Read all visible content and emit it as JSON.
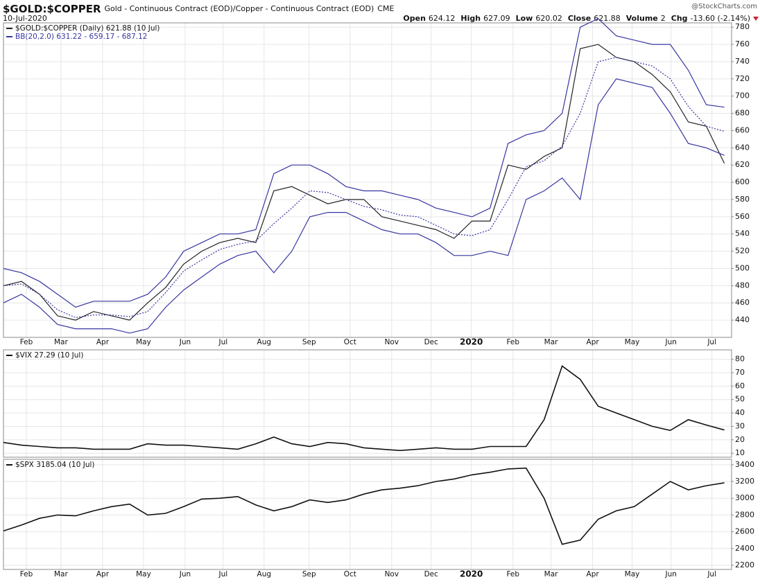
{
  "header": {
    "symbol": "$GOLD:$COPPER",
    "description": "Gold - Continuous Contract (EOD)/Copper - Continuous Contract (EOD)",
    "exchange": "CME",
    "date": "10-Jul-2020",
    "watermark": "@StockCharts.com",
    "quote": [
      {
        "label": "Open",
        "value": "624.12"
      },
      {
        "label": "High",
        "value": "627.09"
      },
      {
        "label": "Low",
        "value": "620.02"
      },
      {
        "label": "Close",
        "value": "621.88"
      },
      {
        "label": "Volume",
        "value": "2"
      },
      {
        "label": "Chg",
        "value": "-13.60 (-2.14%)"
      }
    ]
  },
  "x_axis": {
    "xlim": [
      0,
      40.4
    ],
    "xticks": [
      {
        "value": 1.27,
        "label": "Feb"
      },
      {
        "value": 3.19,
        "label": "Mar"
      },
      {
        "value": 5.5,
        "label": "Apr"
      },
      {
        "value": 7.77,
        "label": "May"
      },
      {
        "value": 10.08,
        "label": "Jun"
      },
      {
        "value": 12.19,
        "label": "Jul"
      },
      {
        "value": 14.46,
        "label": "Aug"
      },
      {
        "value": 16.96,
        "label": "Sep"
      },
      {
        "value": 19.23,
        "label": "Oct"
      },
      {
        "value": 21.54,
        "label": "Nov"
      },
      {
        "value": 23.73,
        "label": "Dec"
      },
      {
        "value": 25.96,
        "label": "2020"
      },
      {
        "value": 28.27,
        "label": "Feb"
      },
      {
        "value": 30.38,
        "label": "Mar"
      },
      {
        "value": 32.69,
        "label": "Apr"
      },
      {
        "value": 34.88,
        "label": "May"
      },
      {
        "value": 37.04,
        "label": "Jun"
      },
      {
        "value": 39.31,
        "label": "Jul"
      }
    ],
    "bold_label": "2020"
  },
  "chart_data": [
    {
      "type": "line",
      "ylim": [
        420,
        785
      ],
      "yticks": [
        440,
        460,
        480,
        500,
        520,
        540,
        560,
        580,
        600,
        620,
        640,
        660,
        680,
        700,
        720,
        740,
        760,
        780
      ],
      "grid": true,
      "series": [
        {
          "name": "$GOLD:$COPPER (Daily) 621.88 (10 Jul)",
          "color": "#222222",
          "values": [
            480,
            485,
            470,
            445,
            440,
            450,
            445,
            440,
            460,
            478,
            505,
            520,
            530,
            535,
            530,
            590,
            595,
            585,
            575,
            580,
            580,
            560,
            555,
            550,
            545,
            535,
            555,
            555,
            620,
            615,
            630,
            640,
            755,
            760,
            745,
            740,
            725,
            705,
            670,
            665,
            621.88
          ]
        },
        {
          "name": "BB(20,2.0) 631.22 - 659.17 - 687.12",
          "color": "#3535a0",
          "values": [
            500,
            495,
            485,
            470,
            455,
            462,
            462,
            462,
            470,
            490,
            520,
            530,
            540,
            540,
            545,
            610,
            620,
            620,
            610,
            595,
            590,
            590,
            585,
            580,
            570,
            565,
            560,
            570,
            645,
            655,
            660,
            680,
            780,
            790,
            770,
            765,
            760,
            760,
            730,
            690,
            687.12
          ]
        },
        {
          "color": "#3535a0",
          "dashed": true,
          "values": [
            480,
            482,
            470,
            452,
            443,
            446,
            446,
            444,
            450,
            472,
            497,
            510,
            522,
            528,
            532,
            552,
            570,
            590,
            588,
            580,
            572,
            568,
            562,
            560,
            550,
            540,
            538,
            545,
            580,
            618,
            625,
            642,
            680,
            740,
            745,
            740,
            735,
            720,
            688,
            665,
            659.17
          ]
        },
        {
          "color": "#3535a0",
          "values": [
            460,
            470,
            455,
            435,
            430,
            430,
            430,
            425,
            430,
            455,
            475,
            490,
            505,
            515,
            520,
            495,
            520,
            560,
            565,
            565,
            555,
            545,
            540,
            540,
            530,
            515,
            515,
            520,
            515,
            580,
            590,
            605,
            580,
            690,
            720,
            715,
            710,
            680,
            645,
            640,
            631.22
          ]
        }
      ]
    },
    {
      "type": "line",
      "ylim": [
        7,
        87
      ],
      "yticks": [
        10,
        20,
        30,
        40,
        50,
        60,
        70,
        80
      ],
      "grid": true,
      "series": [
        {
          "name": "$VIX 27.29 (10 Jul)",
          "color": "#111111",
          "values": [
            18,
            16,
            15,
            14,
            14,
            13,
            13,
            13,
            17,
            16,
            16,
            15,
            14,
            13,
            17,
            22,
            17,
            15,
            18,
            17,
            14,
            13,
            12,
            13,
            14,
            13,
            13,
            15,
            15,
            15,
            35,
            75,
            65,
            45,
            40,
            35,
            30,
            27,
            35,
            31,
            27.29
          ]
        }
      ]
    },
    {
      "type": "line",
      "ylim": [
        2150,
        3465
      ],
      "yticks": [
        2200,
        2400,
        2600,
        2800,
        3000,
        3200,
        3400
      ],
      "grid": true,
      "series": [
        {
          "name": "$SPX 3185.04 (10 Jul)",
          "color": "#111111",
          "values": [
            2610,
            2680,
            2760,
            2800,
            2790,
            2850,
            2900,
            2930,
            2800,
            2820,
            2900,
            2990,
            3000,
            3020,
            2920,
            2850,
            2900,
            2980,
            2950,
            2980,
            3050,
            3100,
            3120,
            3150,
            3200,
            3230,
            3280,
            3310,
            3350,
            3360,
            3000,
            2450,
            2500,
            2750,
            2850,
            2900,
            3050,
            3200,
            3100,
            3150,
            3185.04
          ]
        }
      ]
    }
  ]
}
